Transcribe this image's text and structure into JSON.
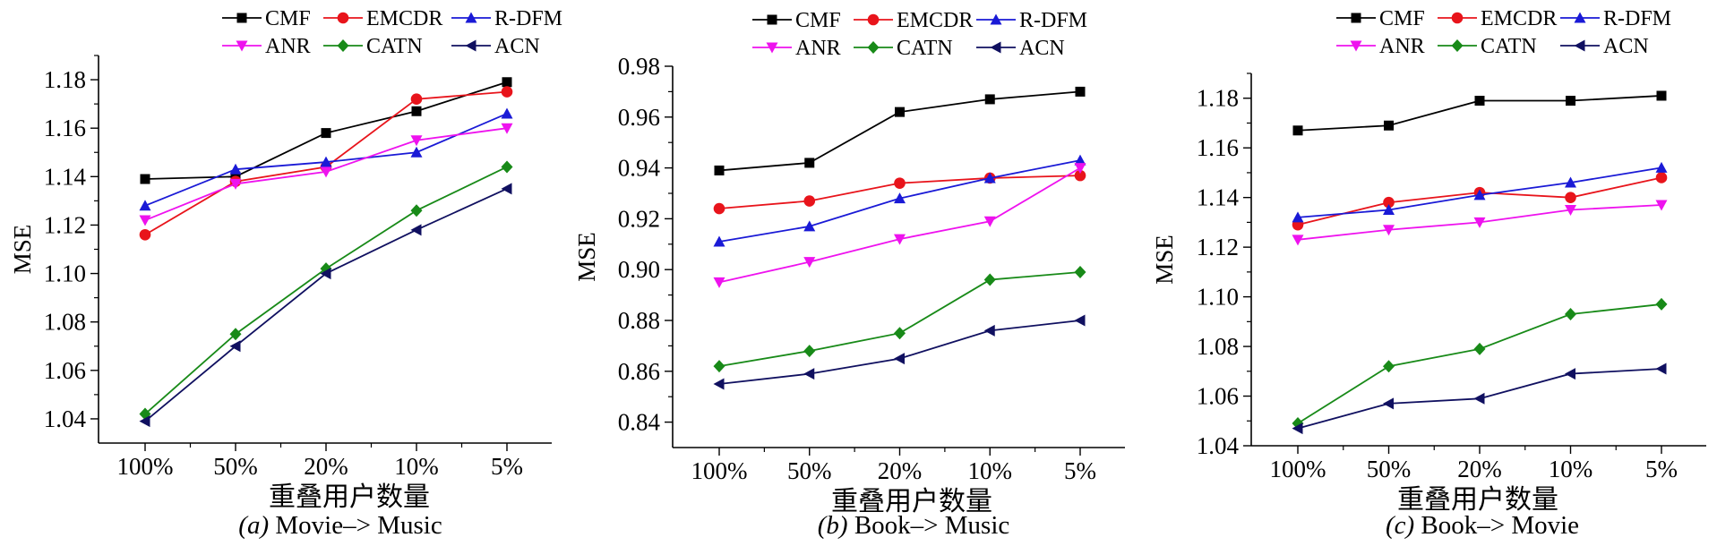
{
  "chart_data": [
    {
      "type": "line",
      "caption_letter": "(a)",
      "caption_text": "Movie–> Music",
      "xlabel": "重叠用户数量",
      "ylabel": "MSE",
      "categories": [
        "100%",
        "50%",
        "20%",
        "10%",
        "5%"
      ],
      "ylim": [
        1.03,
        1.19
      ],
      "yticks": [
        "1.04",
        "1.06",
        "1.08",
        "1.10",
        "1.12",
        "1.14",
        "1.16",
        "1.18"
      ],
      "series": [
        {
          "name": "CMF",
          "values": [
            1.139,
            1.14,
            1.158,
            1.167,
            1.179
          ]
        },
        {
          "name": "EMCDR",
          "values": [
            1.116,
            1.138,
            1.144,
            1.172,
            1.175
          ]
        },
        {
          "name": "R-DFM",
          "values": [
            1.128,
            1.143,
            1.146,
            1.15,
            1.166
          ]
        },
        {
          "name": "ANR",
          "values": [
            1.122,
            1.137,
            1.142,
            1.155,
            1.16
          ]
        },
        {
          "name": "CATN",
          "values": [
            1.042,
            1.075,
            1.102,
            1.126,
            1.144
          ]
        },
        {
          "name": "ACN",
          "values": [
            1.039,
            1.07,
            1.1,
            1.118,
            1.135
          ]
        }
      ]
    },
    {
      "type": "line",
      "caption_letter": "(b)",
      "caption_text": "Book–> Music",
      "xlabel": "重叠用户数量",
      "ylabel": "MSE",
      "categories": [
        "100%",
        "50%",
        "20%",
        "10%",
        "5%"
      ],
      "ylim": [
        0.83,
        0.98
      ],
      "yticks": [
        "0.84",
        "0.86",
        "0.88",
        "0.90",
        "0.92",
        "0.94",
        "0.96",
        "0.98"
      ],
      "series": [
        {
          "name": "CMF",
          "values": [
            0.939,
            0.942,
            0.962,
            0.967,
            0.97
          ]
        },
        {
          "name": "EMCDR",
          "values": [
            0.924,
            0.927,
            0.934,
            0.936,
            0.937
          ]
        },
        {
          "name": "R-DFM",
          "values": [
            0.911,
            0.917,
            0.928,
            0.936,
            0.943
          ]
        },
        {
          "name": "ANR",
          "values": [
            0.895,
            0.903,
            0.912,
            0.919,
            0.94
          ]
        },
        {
          "name": "CATN",
          "values": [
            0.862,
            0.868,
            0.875,
            0.896,
            0.899
          ]
        },
        {
          "name": "ACN",
          "values": [
            0.855,
            0.859,
            0.865,
            0.876,
            0.88
          ]
        }
      ]
    },
    {
      "type": "line",
      "caption_letter": "(c)",
      "caption_text": "Book–> Movie",
      "xlabel": "重叠用户数量",
      "ylabel": "MSE",
      "categories": [
        "100%",
        "50%",
        "20%",
        "10%",
        "5%"
      ],
      "ylim": [
        1.04,
        1.19
      ],
      "yticks": [
        "1.04",
        "1.06",
        "1.08",
        "1.10",
        "1.12",
        "1.14",
        "1.16",
        "1.18"
      ],
      "series": [
        {
          "name": "CMF",
          "values": [
            1.167,
            1.169,
            1.179,
            1.179,
            1.181
          ]
        },
        {
          "name": "EMCDR",
          "values": [
            1.129,
            1.138,
            1.142,
            1.14,
            1.148
          ]
        },
        {
          "name": "R-DFM",
          "values": [
            1.132,
            1.135,
            1.141,
            1.146,
            1.152
          ]
        },
        {
          "name": "ANR",
          "values": [
            1.123,
            1.127,
            1.13,
            1.135,
            1.137
          ]
        },
        {
          "name": "CATN",
          "values": [
            1.049,
            1.072,
            1.079,
            1.093,
            1.097
          ]
        },
        {
          "name": "ACN",
          "values": [
            1.047,
            1.057,
            1.059,
            1.069,
            1.071
          ]
        }
      ]
    }
  ],
  "series_style": [
    {
      "name": "CMF",
      "color": "#000000",
      "marker": "square"
    },
    {
      "name": "EMCDR",
      "color": "#e8141b",
      "marker": "circle"
    },
    {
      "name": "R-DFM",
      "color": "#1a1ad6",
      "marker": "triangle-up"
    },
    {
      "name": "ANR",
      "color": "#ee12ee",
      "marker": "triangle-down"
    },
    {
      "name": "CATN",
      "color": "#188a18",
      "marker": "diamond"
    },
    {
      "name": "ACN",
      "color": "#101060",
      "marker": "triangle-left"
    }
  ]
}
